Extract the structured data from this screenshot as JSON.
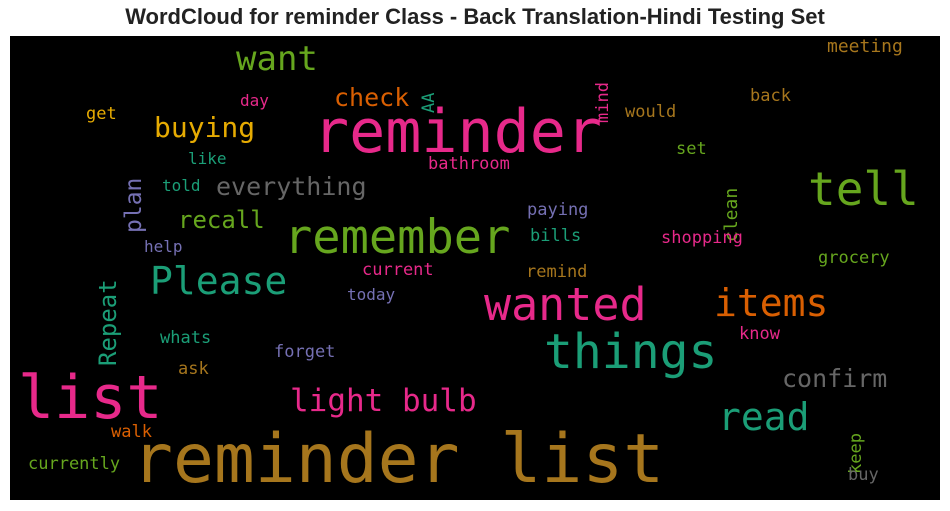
{
  "chart_data": {
    "type": "wordcloud",
    "title": "WordCloud for reminder Class - Back Translation-Hindi Testing Set",
    "background": "#000000",
    "words": [
      {
        "text": "reminder list",
        "color": "#a6761d"
      },
      {
        "text": "reminder",
        "color": "#e7298a"
      },
      {
        "text": "list",
        "color": "#e7298a"
      },
      {
        "text": "things",
        "color": "#1b9e77"
      },
      {
        "text": "remember",
        "color": "#66a61e"
      },
      {
        "text": "tell",
        "color": "#66a61e"
      },
      {
        "text": "wanted",
        "color": "#e7298a"
      },
      {
        "text": "items",
        "color": "#d95f02"
      },
      {
        "text": "Please",
        "color": "#1b9e77"
      },
      {
        "text": "want",
        "color": "#66a61e"
      },
      {
        "text": "read",
        "color": "#1b9e77"
      },
      {
        "text": "light bulb",
        "color": "#e7298a"
      },
      {
        "text": "buying",
        "color": "#e6ab02"
      },
      {
        "text": "everything",
        "color": "#666666"
      },
      {
        "text": "confirm",
        "color": "#666666"
      },
      {
        "text": "check",
        "color": "#d95f02"
      },
      {
        "text": "recall",
        "color": "#66a61e"
      },
      {
        "text": "Repeat",
        "color": "#1b9e77"
      },
      {
        "text": "plan",
        "color": "#7570b3"
      },
      {
        "text": "clean",
        "color": "#66a61e"
      },
      {
        "text": "meeting",
        "color": "#a6761d"
      },
      {
        "text": "mind",
        "color": "#e7298a"
      },
      {
        "text": "AA",
        "color": "#1b9e77"
      },
      {
        "text": "back",
        "color": "#a6761d"
      },
      {
        "text": "would",
        "color": "#a6761d"
      },
      {
        "text": "day",
        "color": "#e7298a"
      },
      {
        "text": "get",
        "color": "#e6ab02"
      },
      {
        "text": "like",
        "color": "#1b9e77"
      },
      {
        "text": "bathroom",
        "color": "#e7298a"
      },
      {
        "text": "set",
        "color": "#66a61e"
      },
      {
        "text": "told",
        "color": "#1b9e77"
      },
      {
        "text": "paying",
        "color": "#7570b3"
      },
      {
        "text": "bills",
        "color": "#1b9e77"
      },
      {
        "text": "help",
        "color": "#7570b3"
      },
      {
        "text": "shopping",
        "color": "#e7298a"
      },
      {
        "text": "grocery",
        "color": "#66a61e"
      },
      {
        "text": "current",
        "color": "#e7298a"
      },
      {
        "text": "remind",
        "color": "#a6761d"
      },
      {
        "text": "today",
        "color": "#7570b3"
      },
      {
        "text": "whats",
        "color": "#1b9e77"
      },
      {
        "text": "know",
        "color": "#e7298a"
      },
      {
        "text": "forget",
        "color": "#7570b3"
      },
      {
        "text": "ask",
        "color": "#a6761d"
      },
      {
        "text": "keep",
        "color": "#66a61e"
      },
      {
        "text": "walk",
        "color": "#d95f02"
      },
      {
        "text": "currently",
        "color": "#66a61e"
      },
      {
        "text": "buy",
        "color": "#666666"
      }
    ]
  }
}
